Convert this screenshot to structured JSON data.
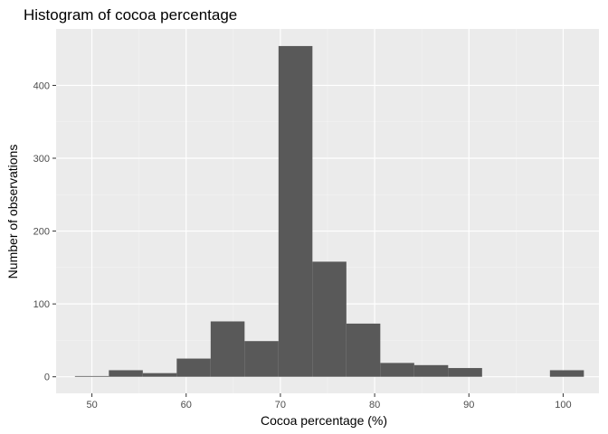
{
  "chart_data": {
    "type": "bar",
    "title": "Histogram of cocoa percentage",
    "xlabel": "Cocoa percentage (%)",
    "ylabel": "Number of observations",
    "xlim": [
      46.2,
      103.8
    ],
    "ylim": [
      -22.7,
      477.5
    ],
    "x_ticks": [
      50,
      60,
      70,
      80,
      90,
      100
    ],
    "y_ticks": [
      0,
      100,
      200,
      300,
      400
    ],
    "bin_width": 3.6,
    "bins": [
      {
        "x_start": 48.2,
        "x_end": 51.8,
        "count": 1
      },
      {
        "x_start": 51.8,
        "x_end": 55.4,
        "count": 9
      },
      {
        "x_start": 55.4,
        "x_end": 59.0,
        "count": 5
      },
      {
        "x_start": 59.0,
        "x_end": 62.6,
        "count": 25
      },
      {
        "x_start": 62.6,
        "x_end": 66.2,
        "count": 76
      },
      {
        "x_start": 66.2,
        "x_end": 69.8,
        "count": 49
      },
      {
        "x_start": 69.8,
        "x_end": 73.4,
        "count": 454
      },
      {
        "x_start": 73.4,
        "x_end": 77.0,
        "count": 158
      },
      {
        "x_start": 77.0,
        "x_end": 80.6,
        "count": 73
      },
      {
        "x_start": 80.6,
        "x_end": 84.2,
        "count": 19
      },
      {
        "x_start": 84.2,
        "x_end": 87.8,
        "count": 16
      },
      {
        "x_start": 87.8,
        "x_end": 91.4,
        "count": 12
      },
      {
        "x_start": 91.4,
        "x_end": 95.0,
        "count": 0
      },
      {
        "x_start": 95.0,
        "x_end": 98.6,
        "count": 0
      },
      {
        "x_start": 98.6,
        "x_end": 102.2,
        "count": 9
      }
    ],
    "grid": true,
    "legend": "none",
    "colors": {
      "panel_background": "#ebebeb",
      "grid_major": "#ffffff",
      "grid_minor": "#f4f4f4",
      "bar_fill": "#595959",
      "tick_text": "#4d4d4d",
      "tick_mark": "#333333"
    }
  }
}
